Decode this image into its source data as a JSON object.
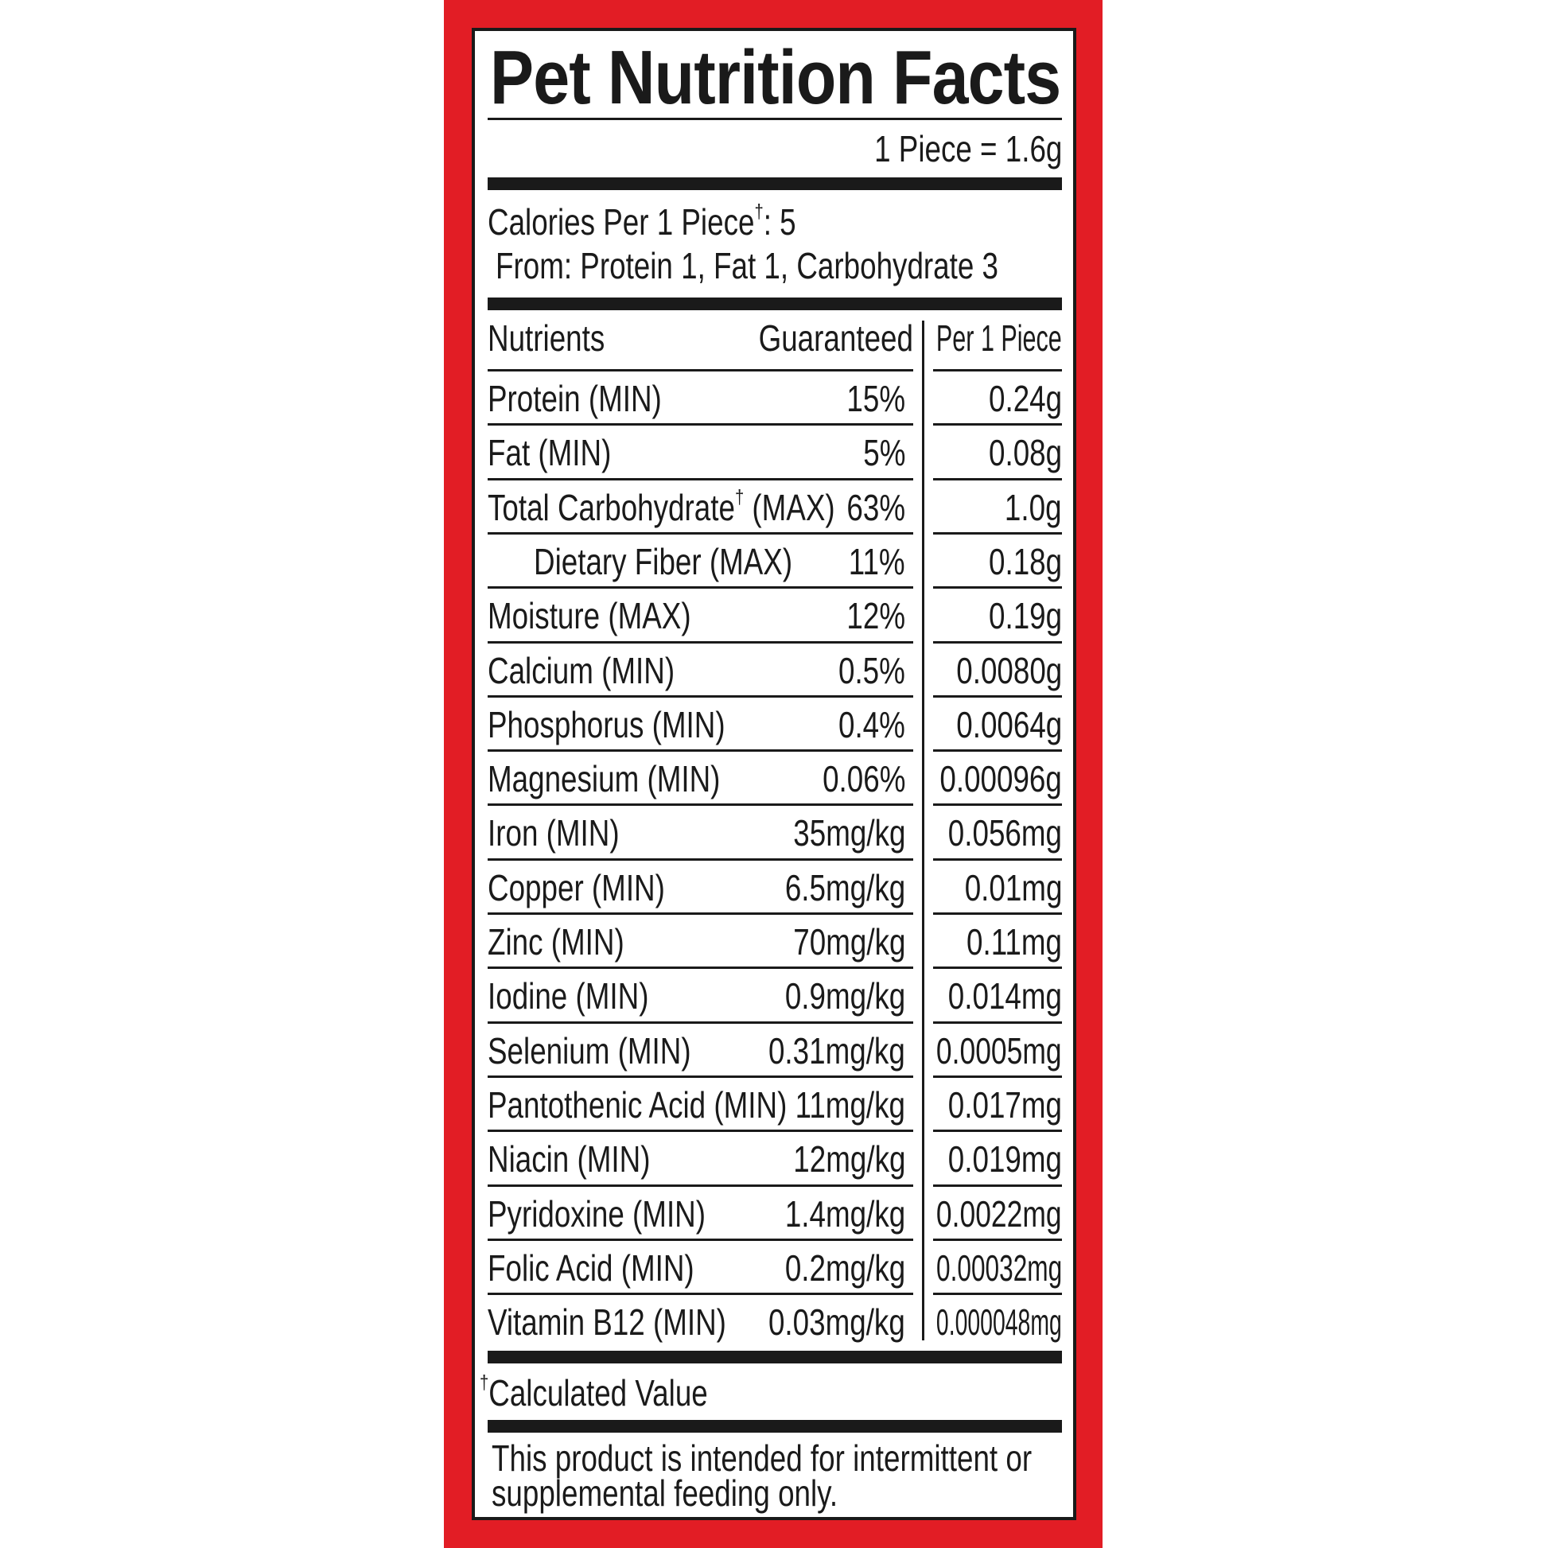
{
  "label": {
    "title": "Pet Nutrition Facts",
    "serving_size": "1 Piece = 1.6g",
    "calories_label": "Calories Per 1 Piece",
    "calories_mark": "†",
    "calories_value": ": 5",
    "calories_from": "From: Protein 1, Fat 1, Carbohydrate 3",
    "columns": [
      "Nutrients",
      "Guaranteed",
      "Per 1 Piece"
    ],
    "rows": [
      {
        "nutrient": "Protein (MIN)",
        "guaranteed": "15%",
        "per_piece": "0.24g"
      },
      {
        "nutrient": "Fat (MIN)",
        "guaranteed": "5%",
        "per_piece": "0.08g"
      },
      {
        "nutrient": "Total Carbohydrate† (MAX)",
        "guaranteed": "63%",
        "per_piece": "1.0g"
      },
      {
        "nutrient": "Dietary Fiber (MAX)",
        "guaranteed": "11%",
        "per_piece": "0.18g",
        "indent": true
      },
      {
        "nutrient": "Moisture (MAX)",
        "guaranteed": "12%",
        "per_piece": "0.19g"
      },
      {
        "nutrient": "Calcium (MIN)",
        "guaranteed": "0.5%",
        "per_piece": "0.0080g"
      },
      {
        "nutrient": "Phosphorus (MIN)",
        "guaranteed": "0.4%",
        "per_piece": "0.0064g"
      },
      {
        "nutrient": "Magnesium (MIN)",
        "guaranteed": "0.06%",
        "per_piece": "0.00096g"
      },
      {
        "nutrient": "Iron (MIN)",
        "guaranteed": "35mg/kg",
        "per_piece": "0.056mg"
      },
      {
        "nutrient": "Copper (MIN)",
        "guaranteed": "6.5mg/kg",
        "per_piece": "0.01mg"
      },
      {
        "nutrient": "Zinc (MIN)",
        "guaranteed": "70mg/kg",
        "per_piece": "0.11mg"
      },
      {
        "nutrient": "Iodine (MIN)",
        "guaranteed": "0.9mg/kg",
        "per_piece": "0.014mg"
      },
      {
        "nutrient": "Selenium (MIN)",
        "guaranteed": "0.31mg/kg",
        "per_piece": "0.0005mg"
      },
      {
        "nutrient": "Pantothenic Acid (MIN)",
        "guaranteed": "11mg/kg",
        "per_piece": "0.017mg"
      },
      {
        "nutrient": "Niacin (MIN)",
        "guaranteed": "12mg/kg",
        "per_piece": "0.019mg"
      },
      {
        "nutrient": "Pyridoxine (MIN)",
        "guaranteed": "1.4mg/kg",
        "per_piece": "0.0022mg"
      },
      {
        "nutrient": "Folic Acid (MIN)",
        "guaranteed": "0.2mg/kg",
        "per_piece": "0.00032mg"
      },
      {
        "nutrient": "Vitamin B12 (MIN)",
        "guaranteed": "0.03mg/kg",
        "per_piece": "0.000048mg"
      }
    ],
    "footnote_mark": "†",
    "footnote": "Calculated Value",
    "disclaimer_line1": "This product is intended for intermittent or",
    "disclaimer_line2": "supplemental feeding only."
  },
  "colors": {
    "border_red": "#e21d25",
    "ink": "#1a1a1a"
  }
}
